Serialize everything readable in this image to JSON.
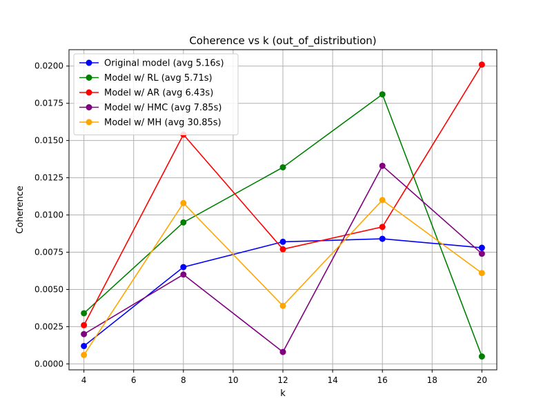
{
  "chart_data": {
    "type": "line",
    "title": "Coherence vs k (out_of_distribution)",
    "xlabel": "k",
    "ylabel": "Coherence",
    "xlim": [
      3.4,
      20.6
    ],
    "ylim": [
      -0.0004,
      0.0211
    ],
    "x_ticks": [
      4,
      6,
      8,
      10,
      12,
      14,
      16,
      18,
      20
    ],
    "x_tick_labels": [
      "4",
      "6",
      "8",
      "10",
      "12",
      "14",
      "16",
      "18",
      "20"
    ],
    "y_ticks": [
      0,
      0.0025,
      0.005,
      0.0075,
      0.01,
      0.0125,
      0.015,
      0.0175,
      0.02
    ],
    "y_tick_labels": [
      "0.0000",
      "0.0025",
      "0.0050",
      "0.0075",
      "0.0100",
      "0.0125",
      "0.0150",
      "0.0175",
      "0.0200"
    ],
    "grid": true,
    "legend_position": "top-left",
    "x": [
      4,
      8,
      12,
      16,
      20
    ],
    "series": [
      {
        "name": "Original model (avg 5.16s)",
        "color": "#0000ff",
        "values": [
          0.0012,
          0.0065,
          0.0082,
          0.0084,
          0.0078
        ]
      },
      {
        "name": "Model w/ RL (avg 5.71s)",
        "color": "#008000",
        "values": [
          0.0034,
          0.0095,
          0.0132,
          0.0181,
          0.0005
        ]
      },
      {
        "name": "Model w/ AR (avg 6.43s)",
        "color": "#ff0000",
        "values": [
          0.0026,
          0.0154,
          0.0077,
          0.0092,
          0.0201
        ]
      },
      {
        "name": "Model w/ HMC (avg 7.85s)",
        "color": "#800080",
        "values": [
          0.002,
          0.006,
          0.0008,
          0.0133,
          0.0074
        ]
      },
      {
        "name": "Model w/ MH (avg 30.85s)",
        "color": "#ffa500",
        "values": [
          0.0006,
          0.0108,
          0.0039,
          0.011,
          0.0061
        ]
      }
    ]
  }
}
